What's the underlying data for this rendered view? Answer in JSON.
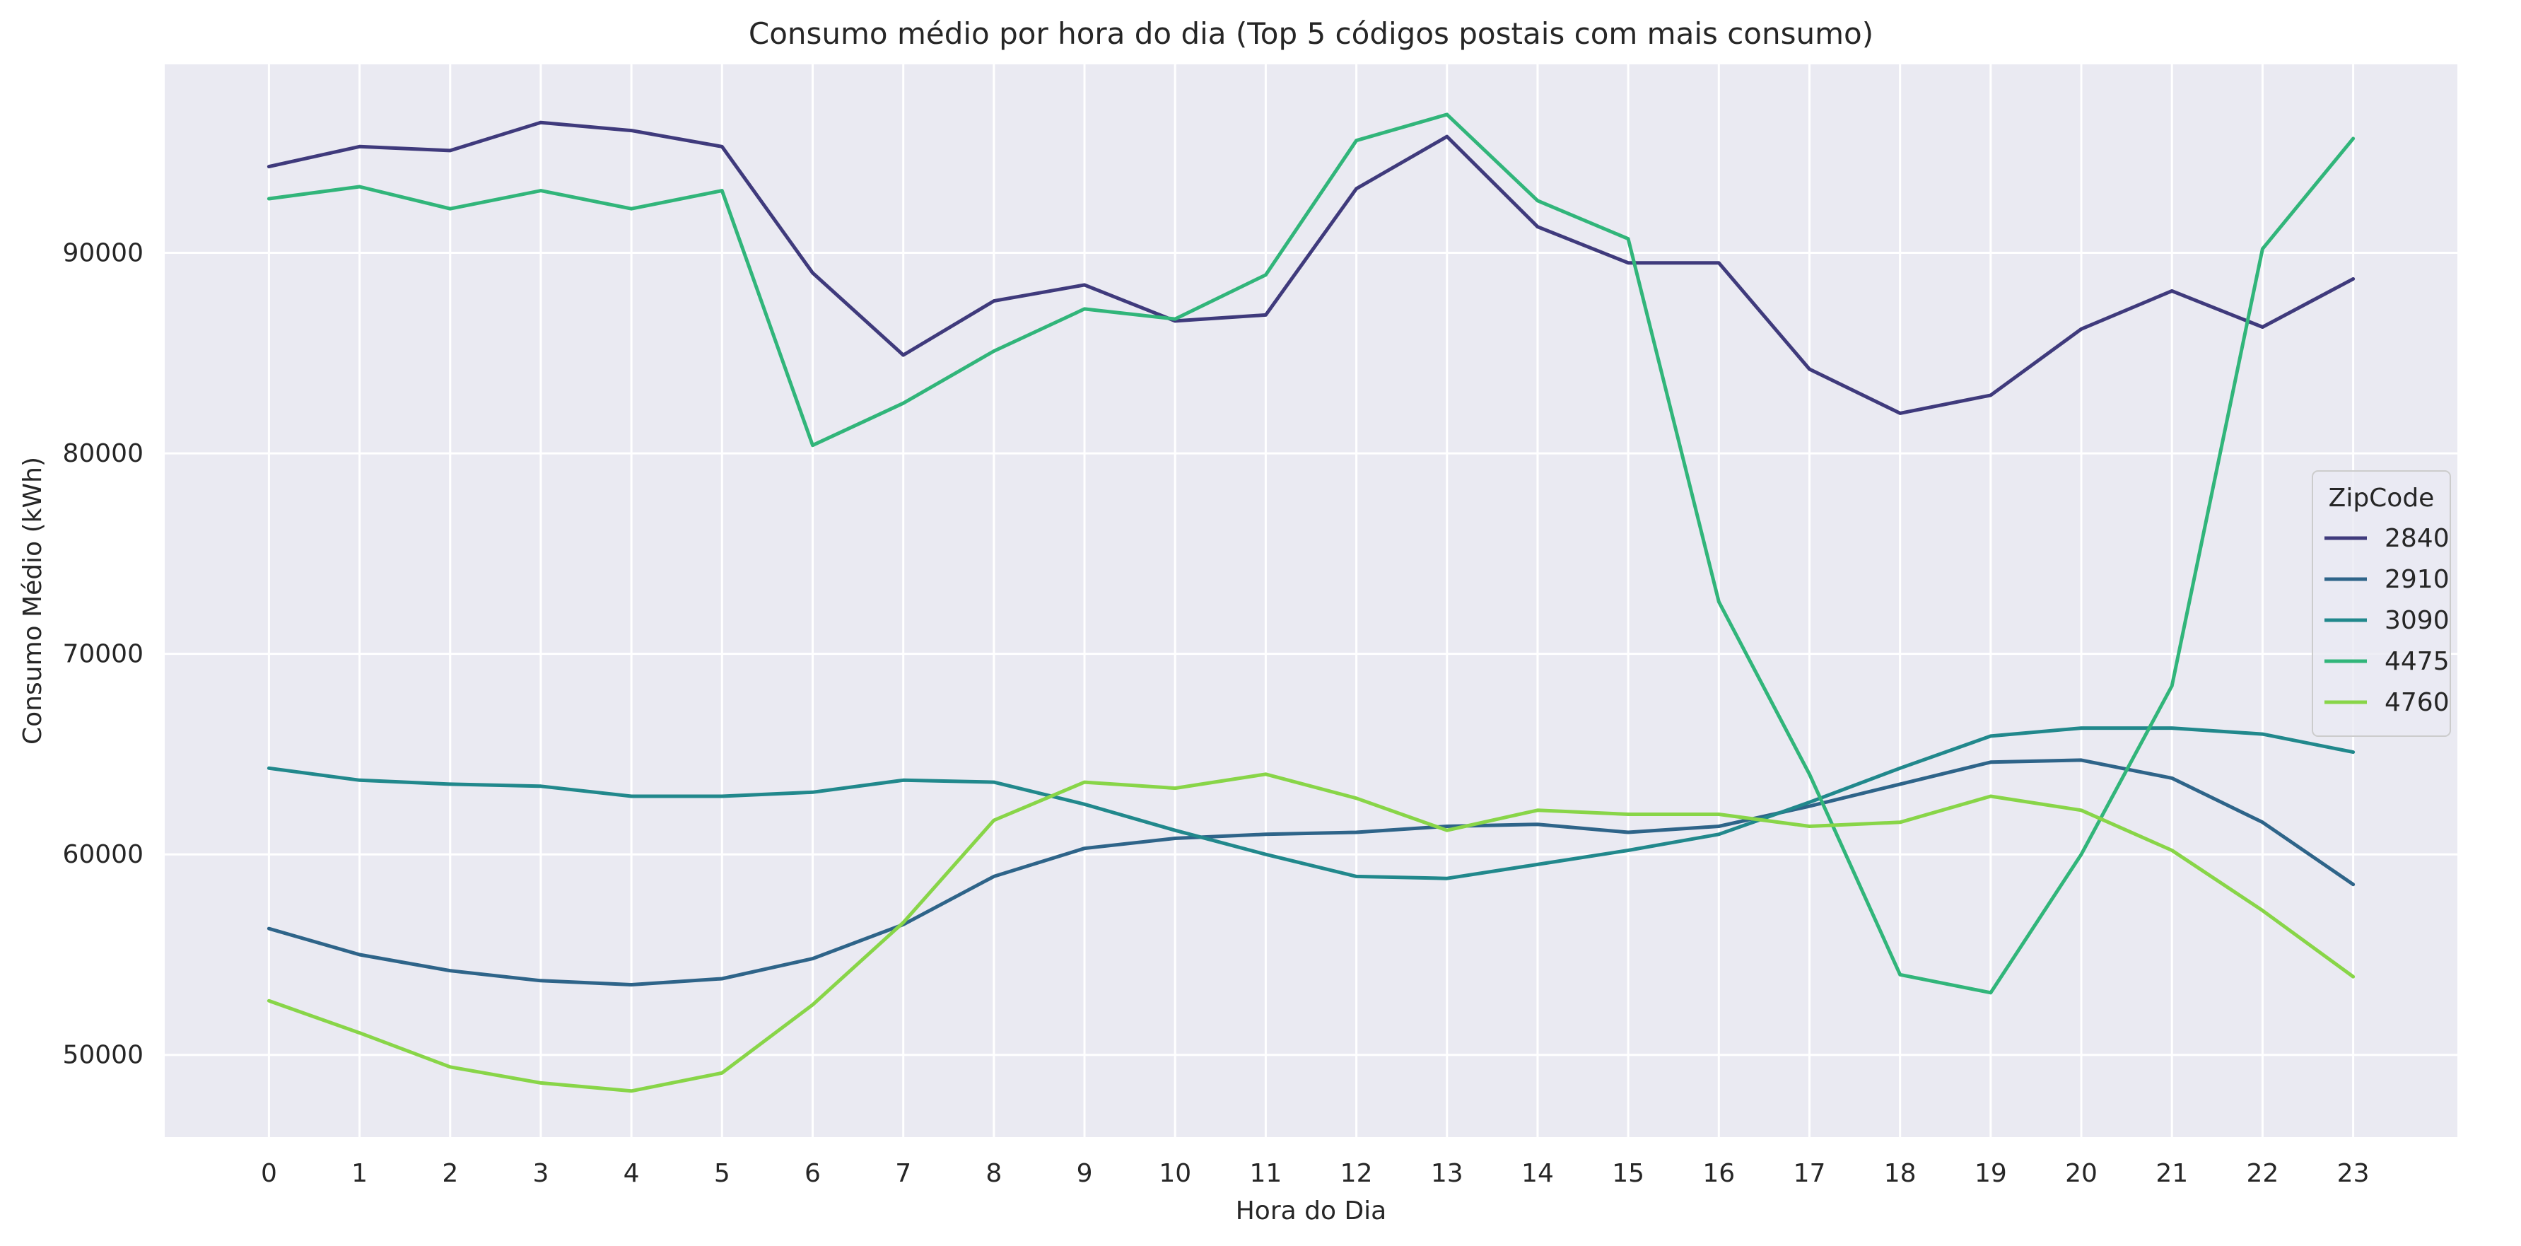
{
  "chart_data": {
    "type": "line",
    "title": "Consumo médio por hora do dia (Top 5 códigos postais com mais consumo)",
    "xlabel": "Hora do Dia",
    "ylabel": "Consumo Médio (kWh)",
    "x": [
      0,
      1,
      2,
      3,
      4,
      5,
      6,
      7,
      8,
      9,
      10,
      11,
      12,
      13,
      14,
      15,
      16,
      17,
      18,
      19,
      20,
      21,
      22,
      23
    ],
    "x_tick_labels": [
      "0",
      "1",
      "2",
      "3",
      "4",
      "5",
      "6",
      "7",
      "8",
      "9",
      "10",
      "11",
      "12",
      "13",
      "14",
      "15",
      "16",
      "17",
      "18",
      "19",
      "20",
      "21",
      "22",
      "23"
    ],
    "xlim": [
      -1.15,
      24.15
    ],
    "ylim": [
      45900,
      99400
    ],
    "y_ticks": [
      50000,
      60000,
      70000,
      80000,
      90000
    ],
    "y_tick_labels": [
      "50000",
      "60000",
      "70000",
      "80000",
      "90000"
    ],
    "grid": true,
    "background": "#eaeaf2",
    "grid_color": "#ffffff",
    "legend": {
      "title": "ZipCode",
      "placement": "center-right"
    },
    "series": [
      {
        "name": "2840",
        "color": "#3f3a7c",
        "values": [
          94300,
          95300,
          95100,
          96500,
          96100,
          95300,
          89000,
          84900,
          87600,
          88400,
          86600,
          86900,
          93200,
          95800,
          91300,
          89500,
          89500,
          84200,
          82000,
          82900,
          86200,
          88100,
          86300,
          88700
        ]
      },
      {
        "name": "2910",
        "color": "#2e6489",
        "values": [
          56300,
          55000,
          54200,
          53700,
          53500,
          53800,
          54800,
          56500,
          58900,
          60300,
          60800,
          61000,
          61100,
          61400,
          61500,
          61100,
          61400,
          62400,
          63500,
          64600,
          64700,
          63800,
          61600,
          58500
        ]
      },
      {
        "name": "3090",
        "color": "#21888c",
        "values": [
          64300,
          63700,
          63500,
          63400,
          62900,
          62900,
          63100,
          63700,
          63600,
          62500,
          61200,
          60000,
          58900,
          58800,
          59500,
          60200,
          61000,
          62600,
          64300,
          65900,
          66300,
          66300,
          66000,
          65100
        ]
      },
      {
        "name": "4475",
        "color": "#31b57a",
        "values": [
          92700,
          93300,
          92200,
          93100,
          92200,
          93100,
          80400,
          82500,
          85100,
          87200,
          86700,
          88900,
          95600,
          96900,
          92600,
          90700,
          72600,
          64000,
          54000,
          53100,
          60000,
          68400,
          90200,
          95700
        ]
      },
      {
        "name": "4760",
        "color": "#88d548",
        "values": [
          52700,
          51100,
          49400,
          48600,
          48200,
          49100,
          52500,
          56600,
          61700,
          63600,
          63300,
          64000,
          62800,
          61200,
          62200,
          62000,
          62000,
          61400,
          61600,
          62900,
          62200,
          60200,
          57200,
          53900
        ]
      }
    ]
  }
}
